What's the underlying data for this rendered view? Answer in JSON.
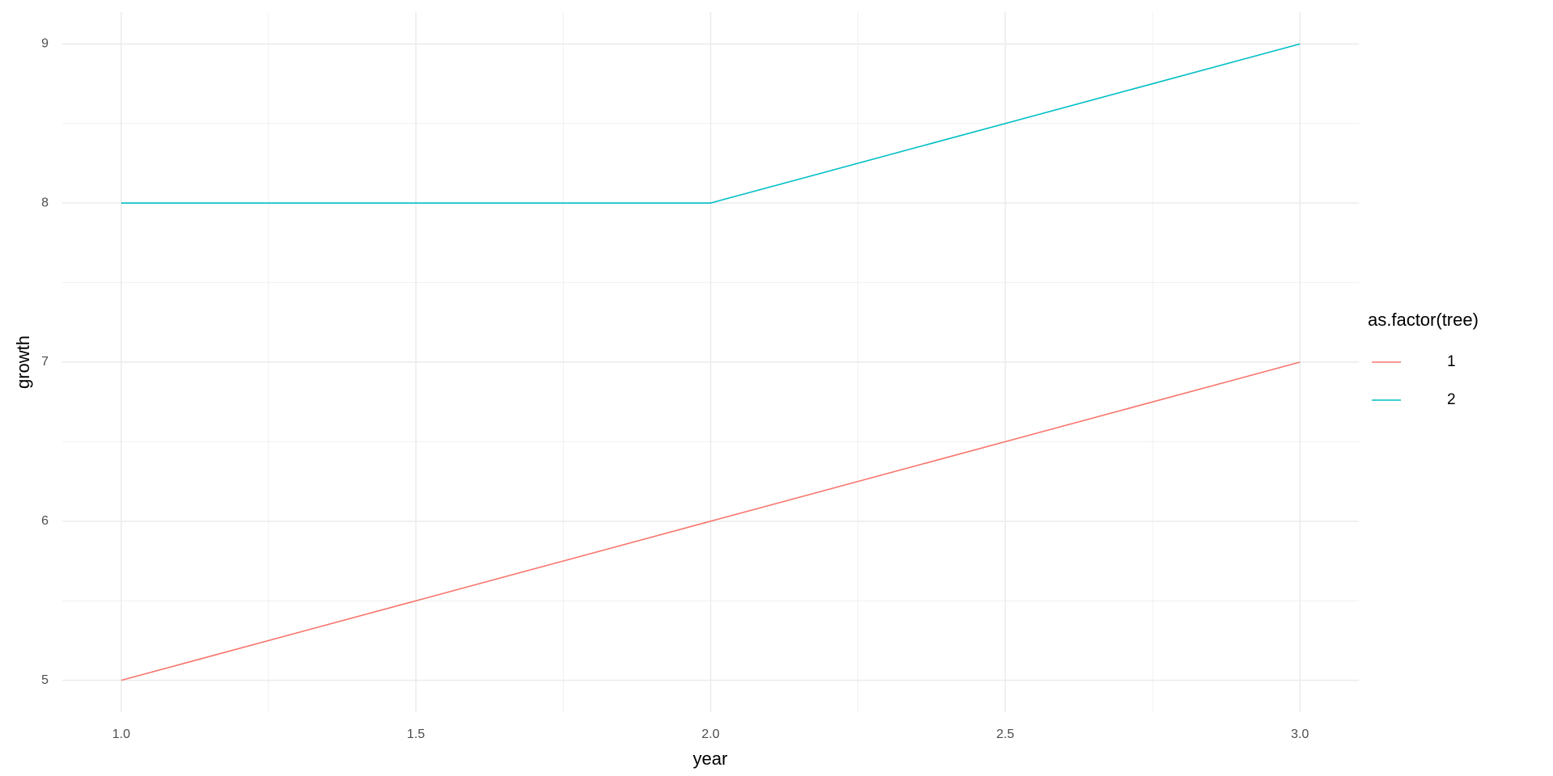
{
  "chart_data": {
    "type": "line",
    "x_label": "year",
    "y_label": "growth",
    "x": [
      1,
      2,
      3
    ],
    "series": [
      {
        "name": "1",
        "color": "#F8766D",
        "values": [
          5,
          6,
          7
        ]
      },
      {
        "name": "2",
        "color": "#00BFC4",
        "values": [
          8,
          8,
          9
        ]
      }
    ],
    "xlim": [
      0.9,
      3.1
    ],
    "xticks": [
      {
        "value": 1,
        "label": "1.0"
      },
      {
        "value": 1.5,
        "label": "1.5"
      },
      {
        "value": 2,
        "label": "2.0"
      },
      {
        "value": 2.5,
        "label": "2.5"
      },
      {
        "value": 3,
        "label": "3.0"
      }
    ],
    "ylim": [
      4.8,
      9.2
    ],
    "yticks": [
      5,
      6,
      7,
      8,
      9
    ],
    "grid": true,
    "legend_title": "as.factor(tree)",
    "legend_position": "right"
  }
}
